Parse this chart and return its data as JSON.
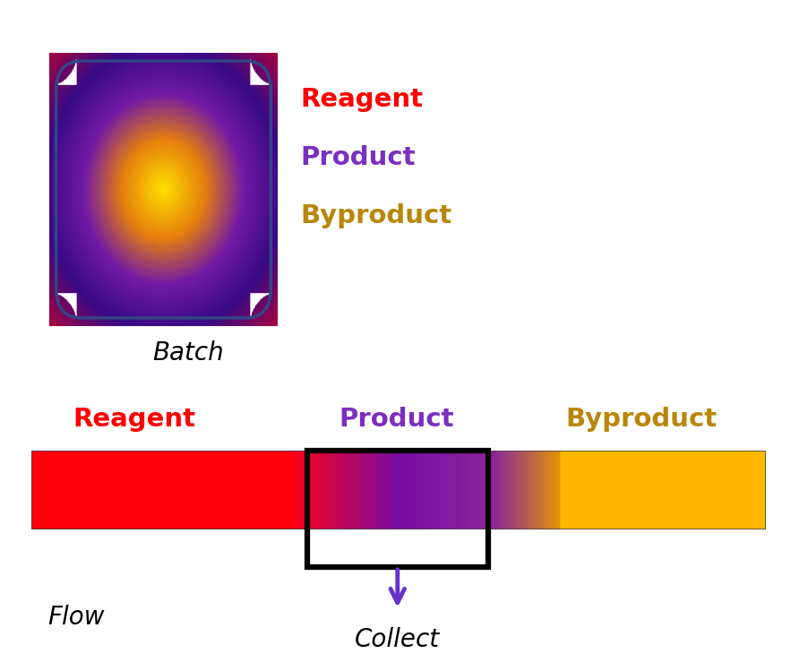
{
  "reagent_label_color": "#ff0000",
  "product_label_color": "#7b2fbe",
  "byproduct_label_color": "#b8860b",
  "batch_label": "Batch",
  "flow_label": "Flow",
  "collect_label": "Collect",
  "reagent_text": "Reagent",
  "product_text": "Product",
  "byproduct_text": "Byproduct",
  "arrow_color": "#6633cc",
  "box_color": "#000000",
  "background_color": "#ffffff",
  "border_color": "#334488"
}
